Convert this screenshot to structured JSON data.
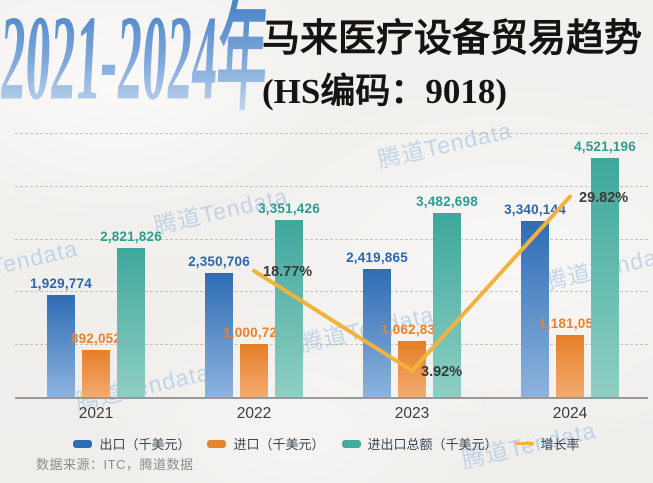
{
  "title": {
    "years": "2021-2024年",
    "years_gradient": [
      "#4e86c8",
      "#7ea9db",
      "#cddef1"
    ],
    "main": "马来医疗设备贸易趋势",
    "sub": "(HS编码：9018)",
    "main_color": "#141414"
  },
  "watermark": {
    "text": "腾道Tendata",
    "color": "#8fb6e0"
  },
  "source": {
    "text": "数据来源：ITC，腾道数据",
    "color": "#8c8c8c"
  },
  "legend_text_color": "#3a4554",
  "chart_data": {
    "type": "bar",
    "categories": [
      "2021",
      "2022",
      "2023",
      "2024"
    ],
    "series": [
      {
        "slug": "export",
        "name": "出口（千美元）",
        "type": "bar",
        "values": [
          1929774,
          2350706,
          2419865,
          3340144
        ],
        "color": "#2e6cb3",
        "gradient": [
          "#2e6cb3",
          "#8db3dd"
        ],
        "label_color": "#2b66ad"
      },
      {
        "slug": "import",
        "name": "进口（千美元）",
        "type": "bar",
        "values": [
          892052,
          1000720,
          1062833,
          1181052
        ],
        "color": "#e8842f",
        "gradient": [
          "#e57e28",
          "#f2ab70"
        ],
        "label_color": "#e8822d"
      },
      {
        "slug": "total",
        "name": "进出口总额（千美元）",
        "type": "bar",
        "values": [
          2821826,
          3351426,
          3482698,
          4521196
        ],
        "color": "#44aa9e",
        "gradient": [
          "#3da89b",
          "#8fcec3"
        ],
        "label_color": "#2d9d92"
      },
      {
        "slug": "growth-rate",
        "name": "增长率",
        "type": "line",
        "values": [
          null,
          18.77,
          3.92,
          29.82
        ],
        "point_labels": [
          "",
          "18.77%",
          "3.92%",
          "29.82%"
        ],
        "color": "#f2b33d",
        "label_color": "#3a3a3a"
      }
    ],
    "ylim": [
      0,
      5000000
    ],
    "grid": "horizontal-dashed",
    "legend_position": "bottom",
    "axis_color": "#98999b",
    "grid_color": "#9e9a92",
    "category_label_color": "#3c3c3c"
  }
}
